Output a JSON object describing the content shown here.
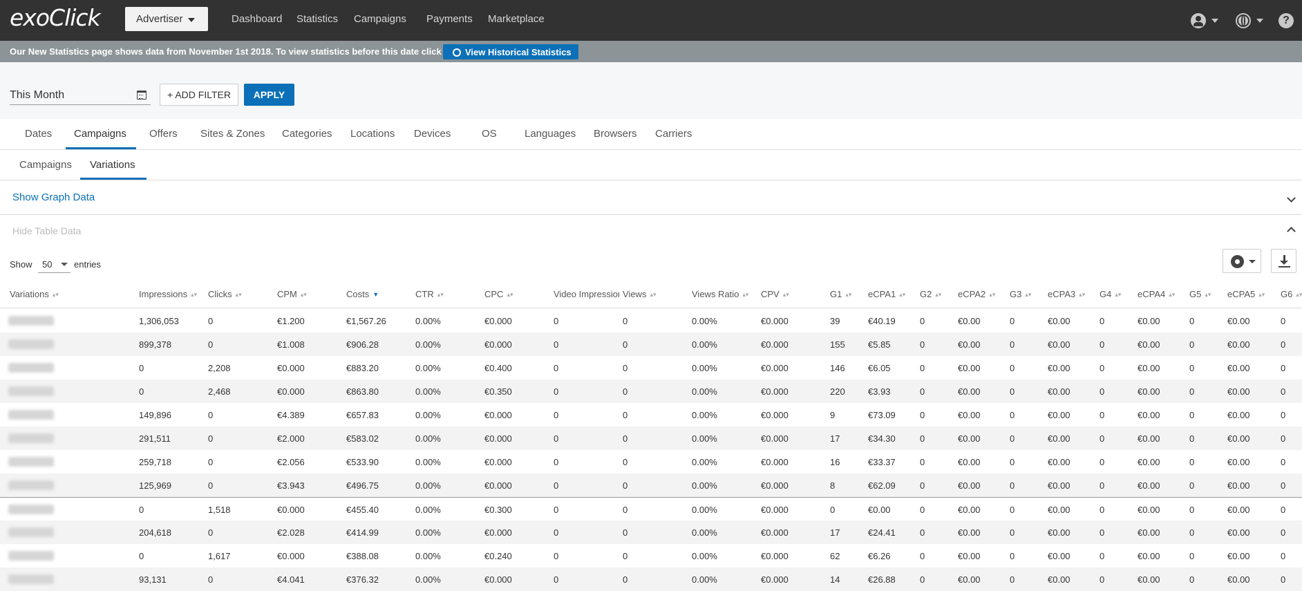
{
  "header": {
    "logo": "exoClick",
    "account_menu": "Advertiser",
    "nav": [
      "Dashboard",
      "Statistics",
      "Campaigns",
      "Payments",
      "Marketplace"
    ],
    "help": "?"
  },
  "notice": {
    "text": "Our New Statistics page shows data from November 1st 2018. To view statistics before this date click here",
    "button": "View Historical Statistics"
  },
  "filters": {
    "date_range": "This Month",
    "add_filter": "+ ADD FILTER",
    "apply": "APPLY"
  },
  "tabs": {
    "items": [
      "Dates",
      "Campaigns",
      "Offers",
      "Sites & Zones",
      "Categories",
      "Locations",
      "Devices",
      "OS",
      "Languages",
      "Browsers",
      "Carriers"
    ],
    "active": "Campaigns"
  },
  "subtabs": {
    "items": [
      "Campaigns",
      "Variations"
    ],
    "active": "Variations"
  },
  "panels": {
    "graph_toggle": "Show Graph Data",
    "table_toggle": "Hide Table Data"
  },
  "entries": {
    "show": "Show",
    "value": "50",
    "label": "entries"
  },
  "table": {
    "columns": [
      "Variations",
      "Impressions",
      "Clicks",
      "CPM",
      "Costs",
      "CTR",
      "CPC",
      "Video Impressions",
      "Views",
      "Views Ratio",
      "CPV",
      "G1",
      "eCPA1",
      "G2",
      "eCPA2",
      "G3",
      "eCPA3",
      "G4",
      "eCPA4",
      "G5",
      "eCPA5",
      "G6"
    ],
    "sorted_column": "Costs",
    "rows": [
      [
        "1,306,053",
        "0",
        "€1.200",
        "€1,567.26",
        "0.00%",
        "€0.000",
        "0",
        "0",
        "0.00%",
        "€0.000",
        "39",
        "€40.19",
        "0",
        "€0.00",
        "0",
        "€0.00",
        "0",
        "€0.00",
        "0",
        "€0.00",
        "0"
      ],
      [
        "899,378",
        "0",
        "€1.008",
        "€906.28",
        "0.00%",
        "€0.000",
        "0",
        "0",
        "0.00%",
        "€0.000",
        "155",
        "€5.85",
        "0",
        "€0.00",
        "0",
        "€0.00",
        "0",
        "€0.00",
        "0",
        "€0.00",
        "0"
      ],
      [
        "0",
        "2,208",
        "€0.000",
        "€883.20",
        "0.00%",
        "€0.400",
        "0",
        "0",
        "0.00%",
        "€0.000",
        "146",
        "€6.05",
        "0",
        "€0.00",
        "0",
        "€0.00",
        "0",
        "€0.00",
        "0",
        "€0.00",
        "0"
      ],
      [
        "0",
        "2,468",
        "€0.000",
        "€863.80",
        "0.00%",
        "€0.350",
        "0",
        "0",
        "0.00%",
        "€0.000",
        "220",
        "€3.93",
        "0",
        "€0.00",
        "0",
        "€0.00",
        "0",
        "€0.00",
        "0",
        "€0.00",
        "0"
      ],
      [
        "149,896",
        "0",
        "€4.389",
        "€657.83",
        "0.00%",
        "€0.000",
        "0",
        "0",
        "0.00%",
        "€0.000",
        "9",
        "€73.09",
        "0",
        "€0.00",
        "0",
        "€0.00",
        "0",
        "€0.00",
        "0",
        "€0.00",
        "0"
      ],
      [
        "291,511",
        "0",
        "€2.000",
        "€583.02",
        "0.00%",
        "€0.000",
        "0",
        "0",
        "0.00%",
        "€0.000",
        "17",
        "€34.30",
        "0",
        "€0.00",
        "0",
        "€0.00",
        "0",
        "€0.00",
        "0",
        "€0.00",
        "0"
      ],
      [
        "259,718",
        "0",
        "€2.056",
        "€533.90",
        "0.00%",
        "€0.000",
        "0",
        "0",
        "0.00%",
        "€0.000",
        "16",
        "€33.37",
        "0",
        "€0.00",
        "0",
        "€0.00",
        "0",
        "€0.00",
        "0",
        "€0.00",
        "0"
      ],
      [
        "125,969",
        "0",
        "€3.943",
        "€496.75",
        "0.00%",
        "€0.000",
        "0",
        "0",
        "0.00%",
        "€0.000",
        "8",
        "€62.09",
        "0",
        "€0.00",
        "0",
        "€0.00",
        "0",
        "€0.00",
        "0",
        "€0.00",
        "0"
      ],
      [
        "0",
        "1,518",
        "€0.000",
        "€455.40",
        "0.00%",
        "€0.300",
        "0",
        "0",
        "0.00%",
        "€0.000",
        "0",
        "€0.00",
        "0",
        "€0.00",
        "0",
        "€0.00",
        "0",
        "€0.00",
        "0",
        "€0.00",
        "0"
      ],
      [
        "204,618",
        "0",
        "€2.028",
        "€414.99",
        "0.00%",
        "€0.000",
        "0",
        "0",
        "0.00%",
        "€0.000",
        "17",
        "€24.41",
        "0",
        "€0.00",
        "0",
        "€0.00",
        "0",
        "€0.00",
        "0",
        "€0.00",
        "0"
      ],
      [
        "0",
        "1,617",
        "€0.000",
        "€388.08",
        "0.00%",
        "€0.240",
        "0",
        "0",
        "0.00%",
        "€0.000",
        "62",
        "€6.26",
        "0",
        "€0.00",
        "0",
        "€0.00",
        "0",
        "€0.00",
        "0",
        "€0.00",
        "0"
      ],
      [
        "93,131",
        "0",
        "€4.041",
        "€376.32",
        "0.00%",
        "€0.000",
        "0",
        "0",
        "0.00%",
        "€0.000",
        "14",
        "€26.88",
        "0",
        "€0.00",
        "0",
        "€0.00",
        "0",
        "€0.00",
        "0",
        "€0.00",
        "0"
      ]
    ]
  }
}
